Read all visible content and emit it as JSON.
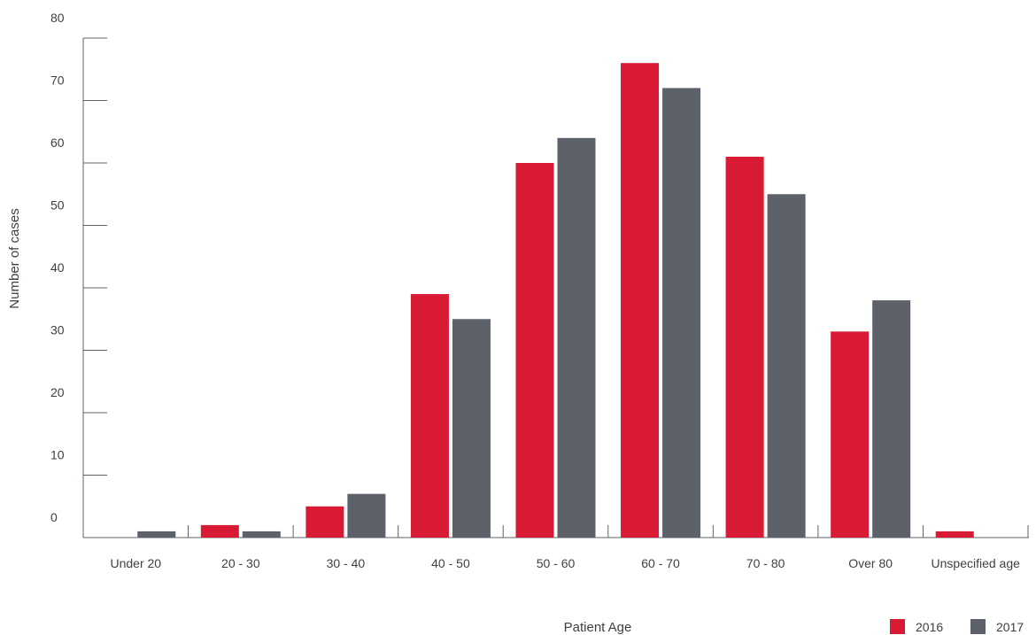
{
  "chart_data": {
    "type": "bar",
    "title": "",
    "xlabel": "Patient Age",
    "ylabel": "Number of cases",
    "ylim": [
      0,
      80
    ],
    "yticks": [
      0,
      10,
      20,
      30,
      40,
      50,
      60,
      70,
      80
    ],
    "categories": [
      "Under 20",
      "20 - 30",
      "30 - 40",
      "40 - 50",
      "50 - 60",
      "60 - 70",
      "70 - 80",
      "Over 80",
      "Unspecified age"
    ],
    "series": [
      {
        "name": "2016",
        "color": "#d91a35",
        "values": [
          0,
          2,
          5,
          39,
          60,
          76,
          61,
          33,
          1
        ]
      },
      {
        "name": "2017",
        "color": "#5d6169",
        "values": [
          1,
          1,
          7,
          35,
          64,
          72,
          55,
          38,
          0
        ]
      }
    ],
    "grid": false,
    "legend_position": "bottom-right"
  }
}
